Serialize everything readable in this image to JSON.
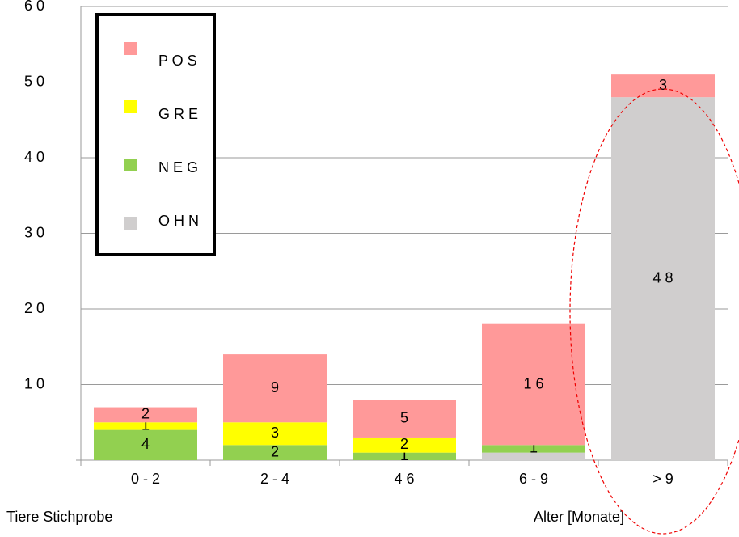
{
  "chart_data": {
    "type": "stacked_bar",
    "categories": [
      "0 - 2",
      "2 - 4",
      "4 6",
      "6 - 9",
      "> 9"
    ],
    "series": [
      {
        "name": "O H N",
        "color": "#d0cece",
        "values": [
          0,
          0,
          0,
          1,
          48
        ],
        "value_labels": [
          null,
          null,
          null,
          null,
          "4 8"
        ]
      },
      {
        "name": "N E G",
        "color": "#92d050",
        "values": [
          4,
          2,
          1,
          1,
          0
        ],
        "value_labels": [
          "4",
          "2",
          "1",
          "1",
          null
        ]
      },
      {
        "name": "G R E",
        "color": "#ffff00",
        "values": [
          1,
          3,
          2,
          0,
          0
        ],
        "value_labels": [
          "1",
          "3",
          "2",
          null,
          null
        ]
      },
      {
        "name": "P O S",
        "color": "#ff9999",
        "values": [
          2,
          9,
          5,
          16,
          3
        ],
        "value_labels": [
          "2",
          "9",
          "5",
          "1 6",
          "3"
        ]
      }
    ],
    "ylim": [
      0,
      60
    ],
    "yticks": [
      {
        "value": 10,
        "label": "1 0"
      },
      {
        "value": 20,
        "label": "2 0"
      },
      {
        "value": 30,
        "label": "3 0"
      },
      {
        "value": 40,
        "label": "4 0"
      },
      {
        "value": 50,
        "label": "5 0"
      },
      {
        "value": 60,
        "label": "6 0"
      }
    ],
    "grid": true,
    "legend": "upper left",
    "annotations": [
      "Tiere Stichprobe",
      "Alter [Monate]"
    ]
  }
}
